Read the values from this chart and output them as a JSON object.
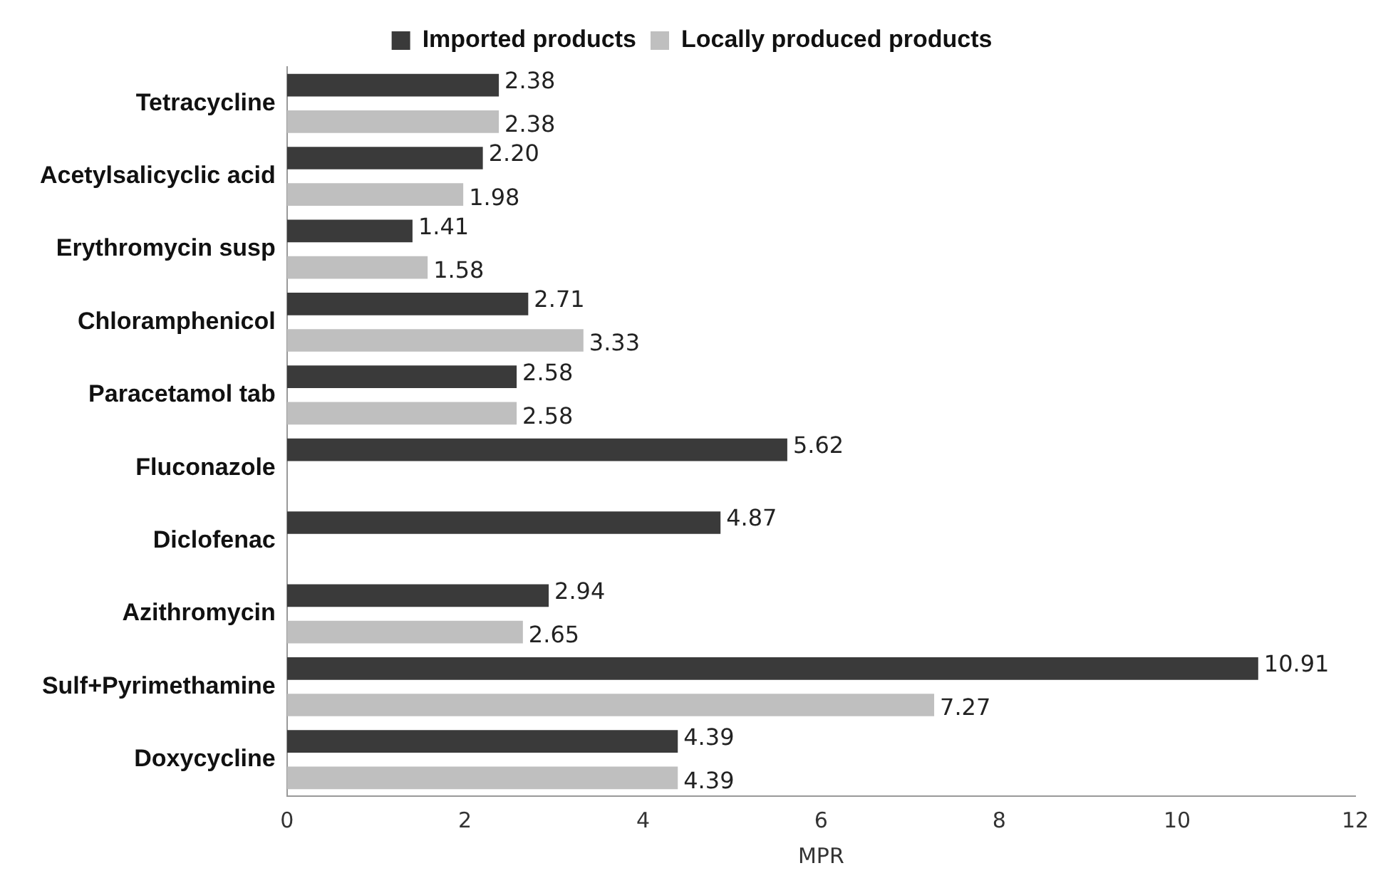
{
  "chart_data": {
    "type": "bar",
    "orientation": "horizontal",
    "xlabel": "MPR",
    "categories": [
      "Tetracycline",
      "Acetylsalicyclic acid",
      "Erythromycin susp",
      "Chloramphenicol",
      "Paracetamol tab",
      "Fluconazole",
      "Diclofenac",
      "Azithromycin",
      "Sulf+Pyrimethamine",
      "Doxycycline"
    ],
    "series": [
      {
        "name": "Imported products",
        "color": "#3a3a3a",
        "values": [
          2.38,
          2.2,
          1.41,
          2.71,
          2.58,
          5.62,
          4.87,
          2.94,
          10.91,
          4.39
        ]
      },
      {
        "name": "Locally produced products",
        "color": "#bfbfbf",
        "values": [
          2.38,
          1.98,
          1.58,
          3.33,
          2.58,
          null,
          null,
          2.65,
          7.27,
          4.39
        ]
      }
    ],
    "value_labels": [
      [
        "2.38",
        "2.20",
        "1.41",
        "2.71",
        "2.58",
        "5.62",
        "4.87",
        "2.94",
        "10.91",
        "4.39"
      ],
      [
        "2.38",
        "1.98",
        "1.58",
        "3.33",
        "2.58",
        null,
        null,
        "2.65",
        "7.27",
        "4.39"
      ]
    ],
    "xlim": [
      0,
      12
    ],
    "xticks": [
      0,
      2,
      4,
      6,
      8,
      10,
      12
    ],
    "grid": false,
    "legend": "top"
  }
}
